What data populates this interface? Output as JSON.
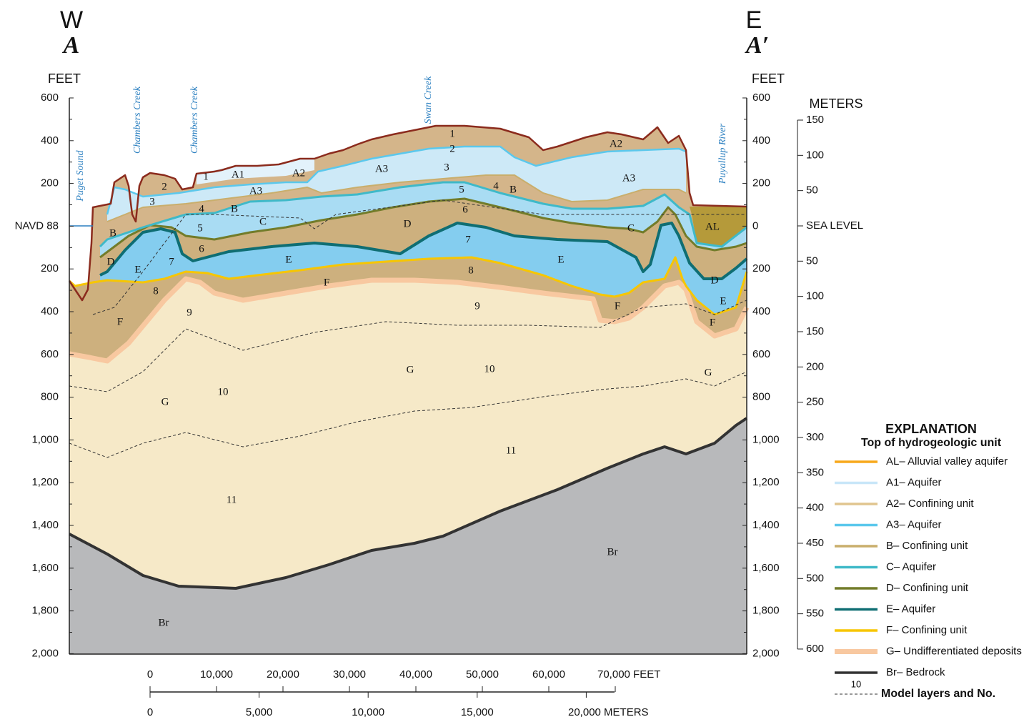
{
  "header": {
    "west": "W",
    "west_section": "A",
    "east": "E",
    "east_section": "A′"
  },
  "left_axis": {
    "unit": "FEET",
    "ticks": [
      "600",
      "400",
      "200",
      "NAVD 88",
      "200",
      "400",
      "600",
      "800",
      "1,000",
      "1,200",
      "1,400",
      "1,600",
      "1,800",
      "2,000"
    ]
  },
  "right_axis_feet": {
    "unit": "FEET",
    "ticks": [
      "600",
      "400",
      "200",
      "0",
      "200",
      "400",
      "600",
      "800",
      "1,000",
      "1,200",
      "1,400",
      "1,600",
      "1,800",
      "2,000"
    ]
  },
  "right_axis_meters": {
    "unit": "METERS",
    "ticks": [
      "150",
      "100",
      "50",
      "SEA LEVEL",
      "50",
      "100",
      "150",
      "200",
      "250",
      "300",
      "350",
      "400",
      "450",
      "500",
      "550",
      "600"
    ]
  },
  "place_labels": [
    "Puget Sound",
    "Chambers Creek",
    "Chambers Creek",
    "Swan Creek",
    "Puyallup River"
  ],
  "unit_labels": [
    "A1",
    "A2",
    "A3",
    "1",
    "2",
    "3",
    "4",
    "B",
    "5",
    "C",
    "B",
    "6",
    "D",
    "E",
    "7",
    "E",
    "8",
    "F",
    "9",
    "F",
    "10",
    "G",
    "11",
    "Br",
    "1",
    "2",
    "A3",
    "3",
    "4",
    "B",
    "5",
    "6",
    "D",
    "7",
    "E",
    "8",
    "9",
    "G",
    "10",
    "11",
    "Br",
    "A2",
    "A3",
    "C",
    "AL",
    "D",
    "E",
    "F",
    "G",
    "F"
  ],
  "scale_bar": {
    "feet": [
      "0",
      "10,000",
      "20,000",
      "30,000",
      "40,000",
      "50,000",
      "60,000",
      "70,000 FEET"
    ],
    "meters": [
      "0",
      "5,000",
      "10,000",
      "15,000",
      "20,000 METERS"
    ]
  },
  "explanation": {
    "title": "EXPLANATION",
    "subtitle": "Top of hydrogeologic unit",
    "items": [
      {
        "label": "AL– Alluvial valley aquifer",
        "color": "#f7a81b"
      },
      {
        "label": "A1– Aquifer",
        "color": "#c8e6f8"
      },
      {
        "label": "A2– Confining unit",
        "color": "#e0c58f"
      },
      {
        "label": "A3– Aquifer",
        "color": "#5bc8ec"
      },
      {
        "label": "B– Confining unit",
        "color": "#c9ae6c"
      },
      {
        "label": "C– Aquifer",
        "color": "#3fb9c8"
      },
      {
        "label": "D– Confining unit",
        "color": "#727c2a"
      },
      {
        "label": "E– Aquifer",
        "color": "#0f6e73"
      },
      {
        "label": "F– Confining unit",
        "color": "#f7c600"
      },
      {
        "label": "G– Undifferentiated deposits",
        "color": "#f8c8a0"
      },
      {
        "label": "Br– Bedrock",
        "color": "#333333"
      }
    ],
    "model_layers": {
      "number": "10",
      "label": "Model layers and No."
    }
  }
}
